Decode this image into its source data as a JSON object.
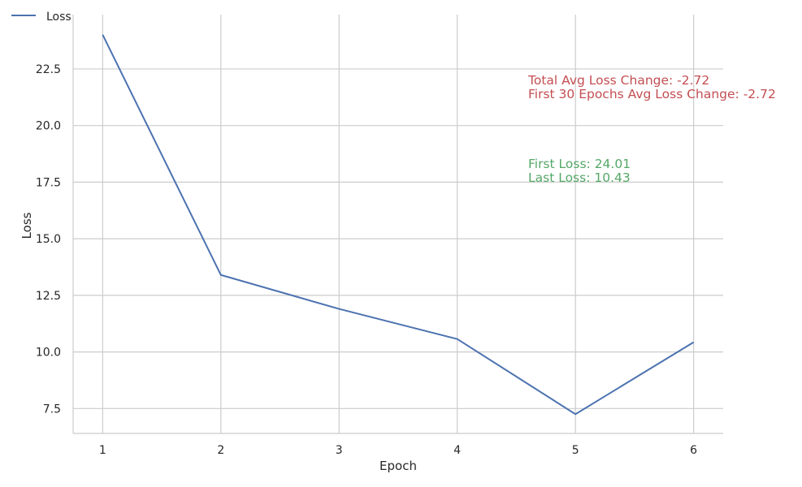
{
  "chart_data": {
    "type": "line",
    "title": "",
    "xlabel": "Epoch",
    "ylabel": "Loss",
    "x": [
      1,
      2,
      3,
      4,
      5,
      6
    ],
    "series": [
      {
        "name": "Loss",
        "color": "#4c72b0",
        "values": [
          24.01,
          13.4,
          11.9,
          10.57,
          7.25,
          10.43
        ]
      }
    ],
    "xlim": [
      0.75,
      6.25
    ],
    "ylim": [
      6.4,
      24.9
    ],
    "xticks": [
      1,
      2,
      3,
      4,
      5,
      6
    ],
    "xtick_labels": [
      "1",
      "2",
      "3",
      "4",
      "5",
      "6"
    ],
    "yticks": [
      7.5,
      10.0,
      12.5,
      15.0,
      17.5,
      20.0,
      22.5
    ],
    "ytick_labels": [
      "7.5",
      "10.0",
      "12.5",
      "15.0",
      "17.5",
      "20.0",
      "22.5"
    ],
    "grid": true,
    "legend_position": "top-left",
    "annotations": [
      {
        "text": "Total Avg Loss Change: -2.72",
        "color": "#c44e52"
      },
      {
        "text": "First 30 Epochs Avg Loss Change: -2.72",
        "color": "#c44e52"
      },
      {
        "text": "First Loss: 24.01",
        "color": "#55a868"
      },
      {
        "text": "Last Loss: 10.43",
        "color": "#55a868"
      }
    ]
  }
}
